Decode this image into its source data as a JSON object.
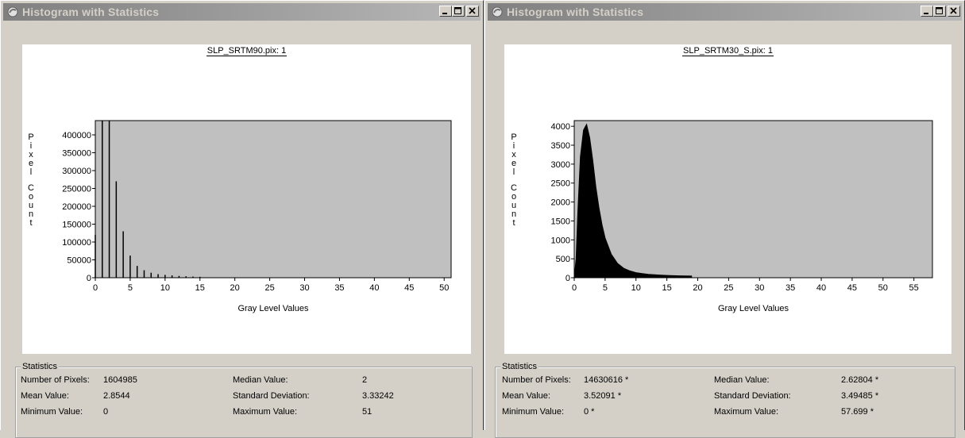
{
  "windows": [
    {
      "title": "Histogram with Statistics",
      "chart_data": {
        "type": "bar",
        "title": "SLP_SRTM90.pix: 1",
        "xlabel": "Gray Level Values",
        "ylabel": "Pixel Count",
        "xlim": [
          0,
          51
        ],
        "ylim": [
          0,
          440000
        ],
        "x_ticks": [
          0,
          5,
          10,
          15,
          20,
          25,
          30,
          35,
          40,
          45,
          50
        ],
        "y_ticks": [
          0,
          50000,
          100000,
          150000,
          200000,
          250000,
          300000,
          350000,
          400000
        ],
        "x": [
          0,
          1,
          2,
          3,
          4,
          5,
          6,
          7,
          8,
          9,
          10,
          11,
          12,
          13,
          14,
          15
        ],
        "values": [
          120000,
          440000,
          440000,
          270000,
          130000,
          62000,
          33000,
          21000,
          14000,
          10000,
          8000,
          6500,
          5000,
          4000,
          3200,
          2500
        ]
      },
      "stats": {
        "legend": "Statistics",
        "number_of_pixels_label": "Number of Pixels:",
        "number_of_pixels": "1604985",
        "mean_label": "Mean Value:",
        "mean": "2.8544",
        "minimum_label": "Minimum Value:",
        "minimum": "0",
        "median_label": "Median Value:",
        "median": "2",
        "std_label": "Standard Deviation:",
        "std": "3.33242",
        "maximum_label": "Maximum Value:",
        "maximum": "51"
      }
    },
    {
      "title": "Histogram with Statistics",
      "chart_data": {
        "type": "area",
        "title": "SLP_SRTM30_S.pix: 1",
        "xlabel": "Gray Level Values",
        "ylabel": "Pixel Count",
        "xlim": [
          0,
          58
        ],
        "ylim": [
          0,
          4150
        ],
        "x_ticks": [
          0,
          5,
          10,
          15,
          20,
          25,
          30,
          35,
          40,
          45,
          50,
          55
        ],
        "y_ticks": [
          0,
          500,
          1000,
          1500,
          2000,
          2500,
          3000,
          3500,
          4000
        ],
        "x": [
          0,
          0.3,
          0.6,
          1.0,
          1.5,
          2.0,
          2.5,
          3.0,
          3.5,
          4.0,
          4.5,
          5.0,
          6.0,
          7.0,
          8.0,
          9.0,
          10.0,
          11.0,
          12.0,
          13.0,
          14.0,
          15.0,
          16.0,
          17.0,
          18.0,
          19.0
        ],
        "values": [
          0,
          500,
          1800,
          3200,
          3900,
          4050,
          3700,
          3100,
          2400,
          1850,
          1400,
          1050,
          620,
          380,
          250,
          180,
          135,
          110,
          90,
          78,
          68,
          60,
          55,
          50,
          48,
          45
        ]
      },
      "stats": {
        "legend": "Statistics",
        "number_of_pixels_label": "Number of Pixels:",
        "number_of_pixels": "14630616 *",
        "mean_label": "Mean Value:",
        "mean": "3.52091 *",
        "minimum_label": "Minimum Value:",
        "minimum": "0 *",
        "median_label": "Median Value:",
        "median": "2.62804 *",
        "std_label": "Standard Deviation:",
        "std": "3.49485 *",
        "maximum_label": "Maximum Value:",
        "maximum": "57.699 *"
      }
    }
  ]
}
